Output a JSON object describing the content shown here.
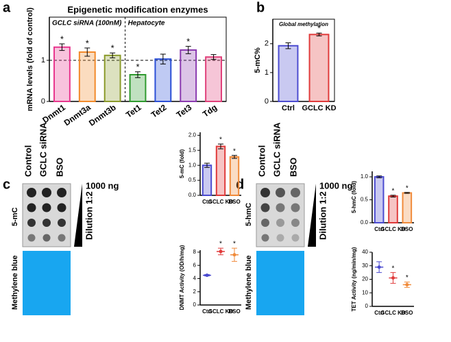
{
  "panel_labels": [
    "a",
    "b",
    "c",
    "d"
  ],
  "blots": [
    {
      "lanes": [
        "Control",
        "GCLC siRNA",
        "BSO"
      ],
      "amount": "1000 ng",
      "dilution": "Dilution 1:2",
      "stain": "5-mC",
      "loading": "Methylene blue"
    },
    {
      "lanes": [
        "Control",
        "GCLC siRNA",
        "BSO"
      ],
      "amount": "1000 ng",
      "dilution": "Dilution 1:2",
      "stain": "5-hmC",
      "loading": "Methylene blue"
    }
  ],
  "chart_data": [
    {
      "type": "bar",
      "title": "Epigenetic modification enzymes",
      "ylabel": "mRNA levels (fold of control)",
      "annotations": [
        "GCLC  siRNA (100nM)",
        "Hepatocyte"
      ],
      "categories": [
        "Dnmt1",
        "Dnmt3a",
        "Dnmt3b",
        "Tet1",
        "Tet2",
        "Tet3",
        "Tdg"
      ],
      "values": [
        1.32,
        1.2,
        1.12,
        0.65,
        1.03,
        1.25,
        1.08
      ],
      "errors": [
        0.08,
        0.1,
        0.06,
        0.07,
        0.12,
        0.09,
        0.06
      ],
      "significance": [
        "*",
        "*",
        "*",
        "*",
        null,
        "*",
        null
      ],
      "colors": [
        "#e8378e",
        "#f28a2a",
        "#8a9a2a",
        "#2e9a2e",
        "#2b4fd6",
        "#8a3ab0",
        "#e0407a"
      ],
      "hline": 1,
      "ylim": [
        0,
        2.05
      ],
      "yticks": [
        0,
        1
      ]
    },
    {
      "type": "bar",
      "ylabel": "5-mC%",
      "annotations": [
        "Global methylation"
      ],
      "categories": [
        "Ctrl",
        "GCLC KD"
      ],
      "values": [
        1.93,
        2.32
      ],
      "errors": [
        0.1,
        0.05
      ],
      "significance": [
        null,
        "*"
      ],
      "colors": [
        "#4b4bd0",
        "#e03a3a"
      ],
      "ylim": [
        0,
        2.85
      ],
      "yticks": [
        0,
        1,
        2
      ]
    },
    {
      "type": "bar",
      "ylabel": "5-mC (fold)",
      "categories": [
        "Ctrl",
        "GCLC KD",
        "BSO"
      ],
      "values": [
        1.0,
        1.63,
        1.28
      ],
      "errors": [
        0.07,
        0.08,
        0.05
      ],
      "significance": [
        null,
        "*",
        "*"
      ],
      "colors": [
        "#4b4bd0",
        "#e03a3a",
        "#f08a3a"
      ],
      "ylim": [
        0,
        2.1
      ],
      "yticks": [
        {
          "value": 0,
          "label": "0.0"
        },
        0.5,
        {
          "value": 1,
          "label": "1.0"
        },
        1.5,
        {
          "value": 2,
          "label": "2.0"
        }
      ]
    },
    {
      "type": "dot",
      "ylabel": "DNMT Activity (OD/h/mg)",
      "categories": [
        "Ctrl",
        "GCLC KD",
        "BSO"
      ],
      "values": [
        4.5,
        8.1,
        7.6
      ],
      "errors": [
        0.1,
        0.5,
        1.0
      ],
      "significance": [
        null,
        "*",
        "*"
      ],
      "colors": [
        "#4b4bd0",
        "#e03a3a",
        "#f08a3a"
      ],
      "ylim": [
        0,
        8.3
      ],
      "yticks": [
        0,
        2,
        4,
        6,
        8
      ]
    },
    {
      "type": "bar",
      "ylabel": "5-hmC (fold)",
      "categories": [
        "Ctrl",
        "GCLC KD",
        "BSO"
      ],
      "values": [
        1.0,
        0.58,
        0.65
      ],
      "errors": [
        0.02,
        0.02,
        0.01
      ],
      "significance": [
        null,
        "*",
        "*"
      ],
      "colors": [
        "#4b4bd0",
        "#e03a3a",
        "#f08a3a"
      ],
      "ylim": [
        0,
        1.12
      ],
      "yticks": [
        {
          "value": 0,
          "label": "0.0"
        },
        0.5,
        {
          "value": 1,
          "label": "1.0"
        }
      ]
    },
    {
      "type": "dot",
      "ylabel": "TET Activity (ng/min/mg)",
      "categories": [
        "Ctrl",
        "GCLC KD",
        "BSO"
      ],
      "values": [
        29,
        21,
        16
      ],
      "errors": [
        4,
        4,
        2
      ],
      "significance": [
        null,
        "*",
        "*"
      ],
      "colors": [
        "#4b4bd0",
        "#e03a3a",
        "#f08a3a"
      ],
      "ylim": [
        0,
        40
      ],
      "yticks": [
        0,
        10,
        20,
        30,
        40
      ]
    }
  ]
}
